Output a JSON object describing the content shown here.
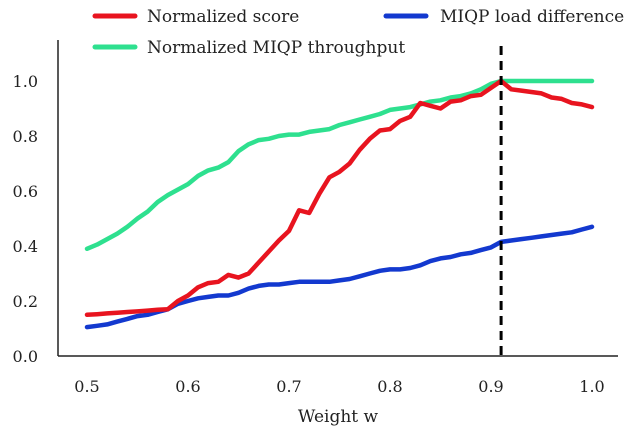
{
  "chart_data": {
    "type": "line",
    "xlabel": "Weight w",
    "ylabel": "",
    "xlim": [
      0.47,
      1.03
    ],
    "ylim": [
      0.0,
      1.15
    ],
    "xticks": [
      0.5,
      0.6,
      0.7,
      0.8,
      0.9,
      1.0
    ],
    "xtick_labels": [
      "0.5",
      "0.6",
      "0.7",
      "0.8",
      "0.9",
      "1.0"
    ],
    "yticks": [
      0.0,
      0.2,
      0.4,
      0.6,
      0.8,
      1.0
    ],
    "ytick_labels": [
      "0.0",
      "0.2",
      "0.4",
      "0.6",
      "0.8",
      "1.0"
    ],
    "grid": false,
    "legend_position": "top",
    "vline": {
      "x": 0.91,
      "style": "dashed",
      "color": "#000000"
    },
    "series": [
      {
        "name": "Normalized score",
        "color": "#e8141f",
        "x": [
          0.5,
          0.51,
          0.52,
          0.53,
          0.54,
          0.55,
          0.56,
          0.57,
          0.58,
          0.59,
          0.6,
          0.61,
          0.62,
          0.63,
          0.64,
          0.65,
          0.66,
          0.67,
          0.68,
          0.69,
          0.7,
          0.71,
          0.72,
          0.73,
          0.74,
          0.75,
          0.76,
          0.77,
          0.78,
          0.79,
          0.8,
          0.81,
          0.82,
          0.83,
          0.84,
          0.85,
          0.86,
          0.87,
          0.88,
          0.89,
          0.9,
          0.91,
          0.92,
          0.93,
          0.94,
          0.95,
          0.96,
          0.97,
          0.98,
          0.99,
          1.0
        ],
        "values": [
          0.15,
          0.152,
          0.155,
          0.157,
          0.16,
          0.162,
          0.165,
          0.168,
          0.17,
          0.2,
          0.22,
          0.25,
          0.265,
          0.27,
          0.295,
          0.285,
          0.3,
          0.34,
          0.38,
          0.42,
          0.455,
          0.53,
          0.52,
          0.59,
          0.65,
          0.67,
          0.7,
          0.75,
          0.79,
          0.82,
          0.825,
          0.855,
          0.87,
          0.92,
          0.91,
          0.9,
          0.925,
          0.93,
          0.945,
          0.95,
          0.975,
          1.0,
          0.97,
          0.965,
          0.96,
          0.955,
          0.94,
          0.935,
          0.92,
          0.915,
          0.905
        ]
      },
      {
        "name": "MIQP load difference",
        "color": "#1339cf",
        "x": [
          0.5,
          0.51,
          0.52,
          0.53,
          0.54,
          0.55,
          0.56,
          0.57,
          0.58,
          0.59,
          0.6,
          0.61,
          0.62,
          0.63,
          0.64,
          0.65,
          0.66,
          0.67,
          0.68,
          0.69,
          0.7,
          0.71,
          0.72,
          0.73,
          0.74,
          0.75,
          0.76,
          0.77,
          0.78,
          0.79,
          0.8,
          0.81,
          0.82,
          0.83,
          0.84,
          0.85,
          0.86,
          0.87,
          0.88,
          0.89,
          0.9,
          0.91,
          0.92,
          0.93,
          0.94,
          0.95,
          0.96,
          0.97,
          0.98,
          0.99,
          1.0
        ],
        "values": [
          0.105,
          0.11,
          0.115,
          0.125,
          0.135,
          0.145,
          0.15,
          0.16,
          0.17,
          0.19,
          0.2,
          0.21,
          0.215,
          0.22,
          0.22,
          0.23,
          0.245,
          0.255,
          0.26,
          0.26,
          0.265,
          0.27,
          0.27,
          0.27,
          0.27,
          0.275,
          0.28,
          0.29,
          0.3,
          0.31,
          0.315,
          0.315,
          0.32,
          0.33,
          0.345,
          0.355,
          0.36,
          0.37,
          0.375,
          0.385,
          0.395,
          0.415,
          0.42,
          0.425,
          0.43,
          0.435,
          0.44,
          0.445,
          0.45,
          0.46,
          0.47
        ]
      },
      {
        "name": "Normalized MIQP throughput",
        "color": "#2ee08f",
        "x": [
          0.5,
          0.51,
          0.52,
          0.53,
          0.54,
          0.55,
          0.56,
          0.57,
          0.58,
          0.59,
          0.6,
          0.61,
          0.62,
          0.63,
          0.64,
          0.65,
          0.66,
          0.67,
          0.68,
          0.69,
          0.7,
          0.71,
          0.72,
          0.73,
          0.74,
          0.75,
          0.76,
          0.77,
          0.78,
          0.79,
          0.8,
          0.81,
          0.82,
          0.83,
          0.84,
          0.85,
          0.86,
          0.87,
          0.88,
          0.89,
          0.9,
          0.91,
          0.92,
          0.93,
          0.94,
          0.95,
          0.96,
          0.97,
          0.98,
          0.99,
          1.0
        ],
        "values": [
          0.39,
          0.405,
          0.425,
          0.445,
          0.47,
          0.5,
          0.525,
          0.56,
          0.585,
          0.605,
          0.625,
          0.655,
          0.675,
          0.685,
          0.705,
          0.745,
          0.77,
          0.785,
          0.79,
          0.8,
          0.805,
          0.805,
          0.815,
          0.82,
          0.825,
          0.84,
          0.85,
          0.86,
          0.87,
          0.88,
          0.895,
          0.9,
          0.905,
          0.915,
          0.925,
          0.93,
          0.94,
          0.945,
          0.955,
          0.97,
          0.99,
          1.0,
          1.0,
          1.0,
          1.0,
          1.0,
          1.0,
          1.0,
          1.0,
          1.0,
          1.0
        ]
      }
    ]
  }
}
